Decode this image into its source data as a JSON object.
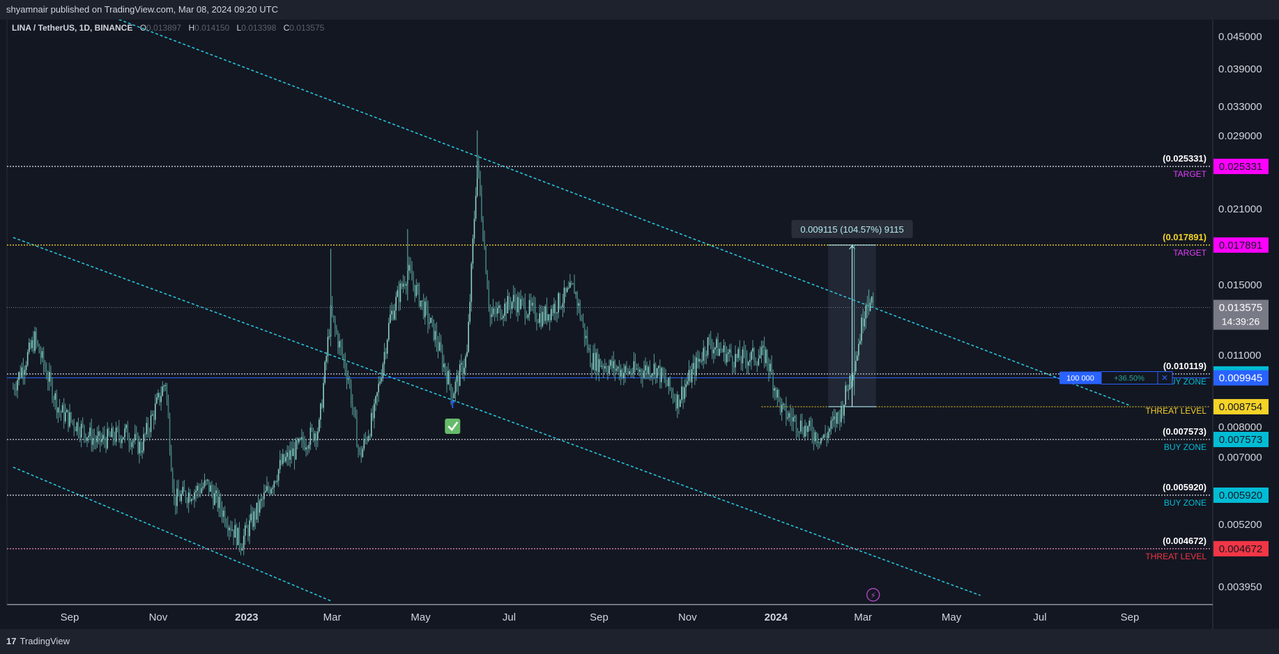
{
  "header": {
    "publish_text": "shyamnair published on TradingView.com, Mar 08, 2024 09:20 UTC"
  },
  "footer": {
    "brand_glyph": "17",
    "brand": "TradingView"
  },
  "symbol": {
    "title": "LINA / TetherUS, 1D, BINANCE",
    "o_label": "O",
    "o": "0.013897",
    "h_label": "H",
    "h": "0.014150",
    "l_label": "L",
    "l": "0.013398",
    "c_label": "C",
    "c": "0.013575"
  },
  "colors": {
    "background": "#131722",
    "candle": "#5a9e9a",
    "channel": "#26c6da",
    "magenta": "#ff00ff",
    "yellow": "#f5d327",
    "red": "#f23645",
    "cyan_label": "#00bcd4",
    "blue": "#2962ff"
  },
  "chart_data": {
    "type": "candlestick",
    "price_axis": {
      "scale": "log",
      "range": [
        0.00365,
        0.0485
      ],
      "ticks": [
        "0.045000",
        "0.039000",
        "0.033000",
        "0.029000",
        "0.021000",
        "0.015000",
        "0.011000",
        "0.008000",
        "0.007000",
        "0.005200",
        "0.003950"
      ],
      "tick_values": [
        0.045,
        0.039,
        0.033,
        0.029,
        0.021,
        0.015,
        0.011,
        0.008,
        0.007,
        0.0052,
        0.00395
      ]
    },
    "time_axis": {
      "labels": [
        "Sep",
        "Nov",
        "2023",
        "Mar",
        "May",
        "Jul",
        "Sep",
        "Nov",
        "2024",
        "Mar",
        "May",
        "Jul",
        "Sep"
      ],
      "bold": [
        false,
        false,
        true,
        false,
        false,
        false,
        false,
        false,
        true,
        false,
        false,
        false,
        false
      ],
      "dates": [
        "2022-09-01",
        "2022-11-01",
        "2023-01-01",
        "2023-03-01",
        "2023-05-01",
        "2023-07-01",
        "2023-09-01",
        "2023-11-01",
        "2024-01-01",
        "2024-03-01",
        "2024-05-01",
        "2024-07-01",
        "2024-09-01"
      ]
    },
    "series_keypoints": [
      {
        "date": "2022-07-24",
        "price": 0.0095
      },
      {
        "date": "2022-08-08",
        "price": 0.0118
      },
      {
        "date": "2022-08-25",
        "price": 0.0086
      },
      {
        "date": "2022-09-20",
        "price": 0.0075
      },
      {
        "date": "2022-10-10",
        "price": 0.0078
      },
      {
        "date": "2022-10-20",
        "price": 0.0073
      },
      {
        "date": "2022-11-06",
        "price": 0.0098
      },
      {
        "date": "2022-11-12",
        "price": 0.0058
      },
      {
        "date": "2022-12-05",
        "price": 0.0062
      },
      {
        "date": "2022-12-28",
        "price": 0.0048
      },
      {
        "date": "2023-01-25",
        "price": 0.0068
      },
      {
        "date": "2023-02-20",
        "price": 0.008
      },
      {
        "date": "2023-02-28",
        "price": 0.0132
      },
      {
        "date": "2023-03-12",
        "price": 0.01
      },
      {
        "date": "2023-03-20",
        "price": 0.007
      },
      {
        "date": "2023-03-30",
        "price": 0.0085
      },
      {
        "date": "2023-04-10",
        "price": 0.013
      },
      {
        "date": "2023-04-22",
        "price": 0.016
      },
      {
        "date": "2023-05-10",
        "price": 0.0122
      },
      {
        "date": "2023-05-23",
        "price": 0.0093
      },
      {
        "date": "2023-06-02",
        "price": 0.011
      },
      {
        "date": "2023-06-09",
        "price": 0.026
      },
      {
        "date": "2023-06-18",
        "price": 0.013
      },
      {
        "date": "2023-07-04",
        "price": 0.014
      },
      {
        "date": "2023-07-24",
        "price": 0.013
      },
      {
        "date": "2023-08-15",
        "price": 0.0148
      },
      {
        "date": "2023-08-26",
        "price": 0.0108
      },
      {
        "date": "2023-09-20",
        "price": 0.0102
      },
      {
        "date": "2023-10-10",
        "price": 0.0104
      },
      {
        "date": "2023-10-25",
        "price": 0.009
      },
      {
        "date": "2023-11-15",
        "price": 0.0116
      },
      {
        "date": "2023-12-05",
        "price": 0.0108
      },
      {
        "date": "2023-12-25",
        "price": 0.011
      },
      {
        "date": "2024-01-05",
        "price": 0.0086
      },
      {
        "date": "2024-01-20",
        "price": 0.008
      },
      {
        "date": "2024-02-03",
        "price": 0.0076
      },
      {
        "date": "2024-02-15",
        "price": 0.0086
      },
      {
        "date": "2024-02-26",
        "price": 0.0112
      },
      {
        "date": "2024-03-03",
        "price": 0.014
      },
      {
        "date": "2024-03-08",
        "price": 0.013575
      }
    ],
    "horizontal_levels": [
      {
        "price": 0.025331,
        "label": "(0.025331)",
        "tag": "TARGET",
        "tag_color": "#e040fb",
        "badge_bg": "#ff00ff",
        "line_color": "#d1d4dc",
        "badge": "0.025331"
      },
      {
        "price": 0.017891,
        "label": "(0.017891)",
        "tag": "TARGET",
        "tag_color": "#e040fb",
        "badge_bg": "#ff00ff",
        "line_color": "#f5d327",
        "badge": "0.017891"
      },
      {
        "price": 0.010119,
        "label": "(0.010119)",
        "tag": "BUY ZONE",
        "tag_color": "#00bcd4",
        "badge_bg": "#00bcd4",
        "line_color": "#d1d4dc",
        "badge": "0.010119"
      },
      {
        "price": 0.007573,
        "label": "(0.007573)",
        "tag": "BUY ZONE",
        "tag_color": "#00bcd4",
        "badge_bg": "#00bcd4",
        "line_color": "#d1d4dc",
        "badge": "0.007573"
      },
      {
        "price": 0.00592,
        "label": "(0.005920)",
        "tag": "BUY ZONE",
        "tag_color": "#00bcd4",
        "badge_bg": "#00bcd4",
        "line_color": "#d1d4dc",
        "badge": "0.005920"
      },
      {
        "price": 0.004672,
        "label": "(0.004672)",
        "tag": "THREAT LEVEL",
        "tag_color": "#f23645",
        "badge_bg": "#f23645",
        "line_color": "#f48fb1",
        "badge": "0.004672"
      }
    ],
    "threat_level_mid": {
      "price": 0.008754,
      "tag": "THREAT LEVEL",
      "badge": "0.008754",
      "color": "#f5d327"
    },
    "position_line": {
      "price": 0.009945,
      "badge": "0.009945",
      "qty": "100 000",
      "pnl": "+36.50%",
      "close": "✕"
    },
    "current_price": {
      "price": 0.013575,
      "badge": "0.013575",
      "countdown": "14:39:26"
    },
    "measure": {
      "label": "0.009115 (104.57%) 9115",
      "from_date": "2024-02-06",
      "to_date": "2024-03-10",
      "low": 0.008754,
      "high": 0.017891
    },
    "channel_lines": [
      {
        "p1": {
          "date": "2022-10-05",
          "price": 0.0485
        },
        "p2": {
          "date": "2024-09-01",
          "price": 0.0088
        }
      },
      {
        "p1": {
          "date": "2022-07-24",
          "price": 0.0185
        },
        "p2": {
          "date": "2024-05-21",
          "price": 0.0038
        }
      },
      {
        "p1": {
          "date": "2022-07-24",
          "price": 0.0067
        },
        "p2": {
          "date": "2023-03-01",
          "price": 0.0037
        }
      }
    ],
    "markers": {
      "check_icon": "white-check-mark-icon",
      "up_arrow": "↑",
      "lightning": "⚡",
      "arrow_date": "2023-05-23",
      "lightning_date": "2024-03-08"
    }
  }
}
